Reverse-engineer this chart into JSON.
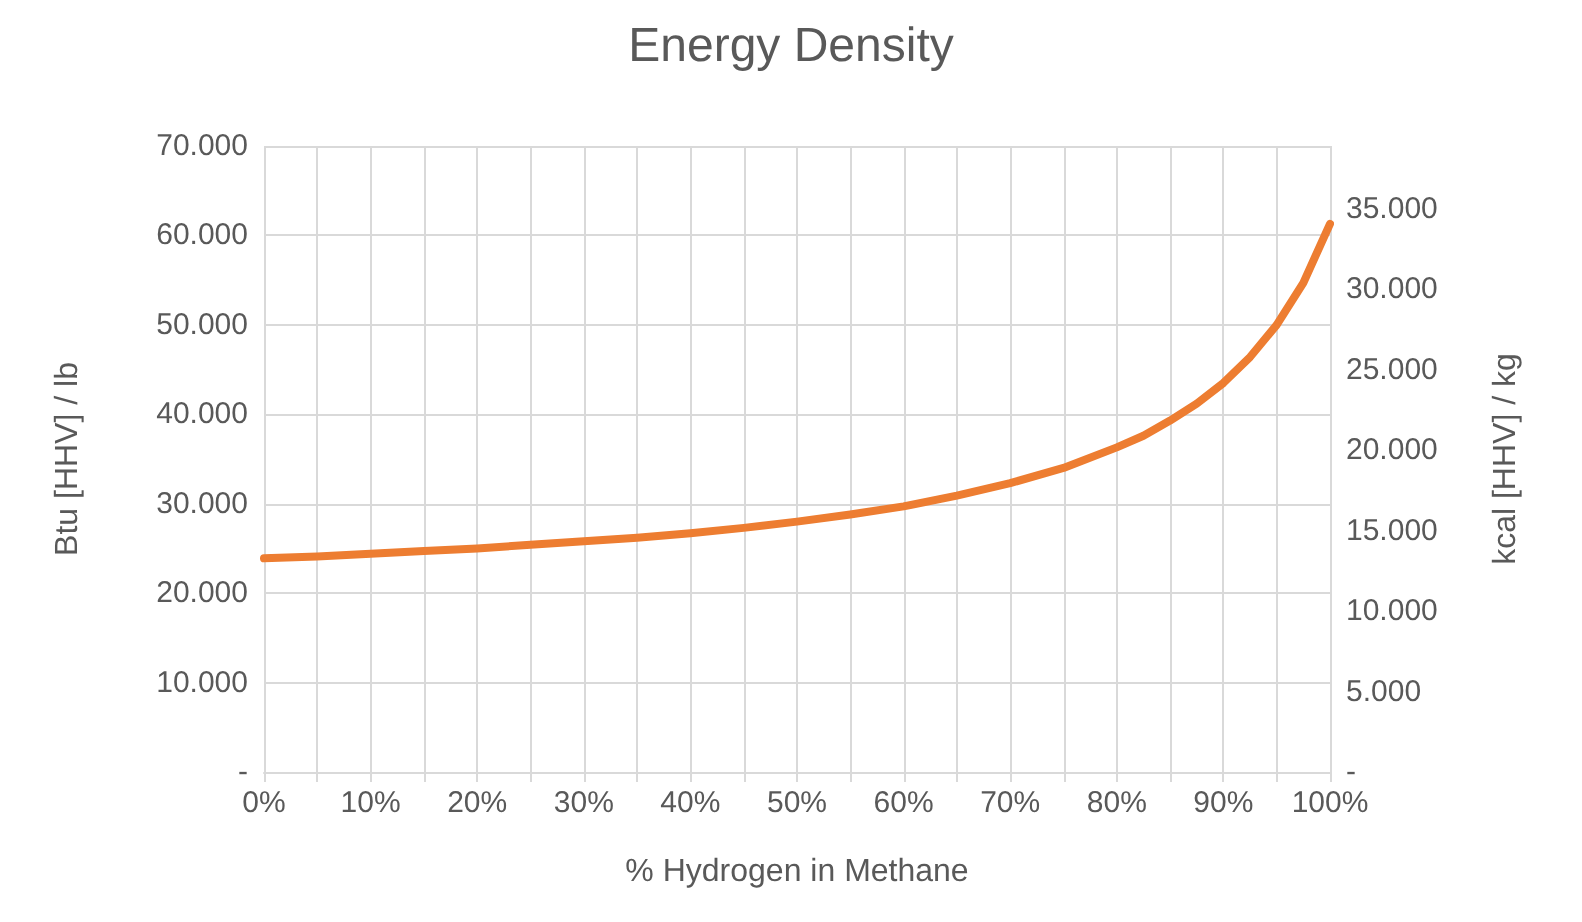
{
  "chart_data": {
    "type": "line",
    "title": "Energy Density",
    "xlabel": "% Hydrogen in Methane",
    "ylabel": "Btu [HHV] / lb",
    "y2label": "kcal [HHV] / kg",
    "x": [
      0,
      5,
      10,
      15,
      20,
      25,
      30,
      35,
      40,
      45,
      50,
      55,
      60,
      65,
      70,
      75,
      80,
      82.5,
      85,
      87.5,
      90,
      92.5,
      95,
      97.5,
      100
    ],
    "series": [
      {
        "color": "#ed7d31",
        "values": [
          23900,
          24100,
          24400,
          24700,
          25000,
          25400,
          25800,
          26200,
          26700,
          27300,
          28000,
          28800,
          29700,
          30900,
          32300,
          34000,
          36300,
          37600,
          39300,
          41200,
          43500,
          46400,
          50000,
          54700,
          61300
        ]
      }
    ],
    "xlim": [
      0,
      100
    ],
    "xticks": [
      {
        "value": 0,
        "label": "0%"
      },
      {
        "value": 5,
        "label": null
      },
      {
        "value": 10,
        "label": "10%"
      },
      {
        "value": 15,
        "label": null
      },
      {
        "value": 20,
        "label": "20%"
      },
      {
        "value": 25,
        "label": null
      },
      {
        "value": 30,
        "label": "30%"
      },
      {
        "value": 35,
        "label": null
      },
      {
        "value": 40,
        "label": "40%"
      },
      {
        "value": 45,
        "label": null
      },
      {
        "value": 50,
        "label": "50%"
      },
      {
        "value": 55,
        "label": null
      },
      {
        "value": 60,
        "label": "60%"
      },
      {
        "value": 65,
        "label": null
      },
      {
        "value": 70,
        "label": "70%"
      },
      {
        "value": 75,
        "label": null
      },
      {
        "value": 80,
        "label": "80%"
      },
      {
        "value": 85,
        "label": null
      },
      {
        "value": 90,
        "label": "90%"
      },
      {
        "value": 95,
        "label": null
      },
      {
        "value": 100,
        "label": "100%"
      }
    ],
    "ylim": [
      0,
      70000
    ],
    "yticks": [
      {
        "value": 0,
        "label": "-"
      },
      {
        "value": 10000,
        "label": "10.000"
      },
      {
        "value": 20000,
        "label": "20.000"
      },
      {
        "value": 30000,
        "label": "30.000"
      },
      {
        "value": 40000,
        "label": "40.000"
      },
      {
        "value": 50000,
        "label": "50.000"
      },
      {
        "value": 60000,
        "label": "60.000"
      },
      {
        "value": 70000,
        "label": "70.000"
      }
    ],
    "y2lim": [
      0,
      38889
    ],
    "y2ticks": [
      {
        "value": 0,
        "label": "-"
      },
      {
        "value": 5000,
        "label": "5.000"
      },
      {
        "value": 10000,
        "label": "10.000"
      },
      {
        "value": 15000,
        "label": "15.000"
      },
      {
        "value": 20000,
        "label": "20.000"
      },
      {
        "value": 25000,
        "label": "25.000"
      },
      {
        "value": 30000,
        "label": "30.000"
      },
      {
        "value": 35000,
        "label": "35.000"
      }
    ],
    "grid": true,
    "marker": "none",
    "line_style": "solid"
  }
}
